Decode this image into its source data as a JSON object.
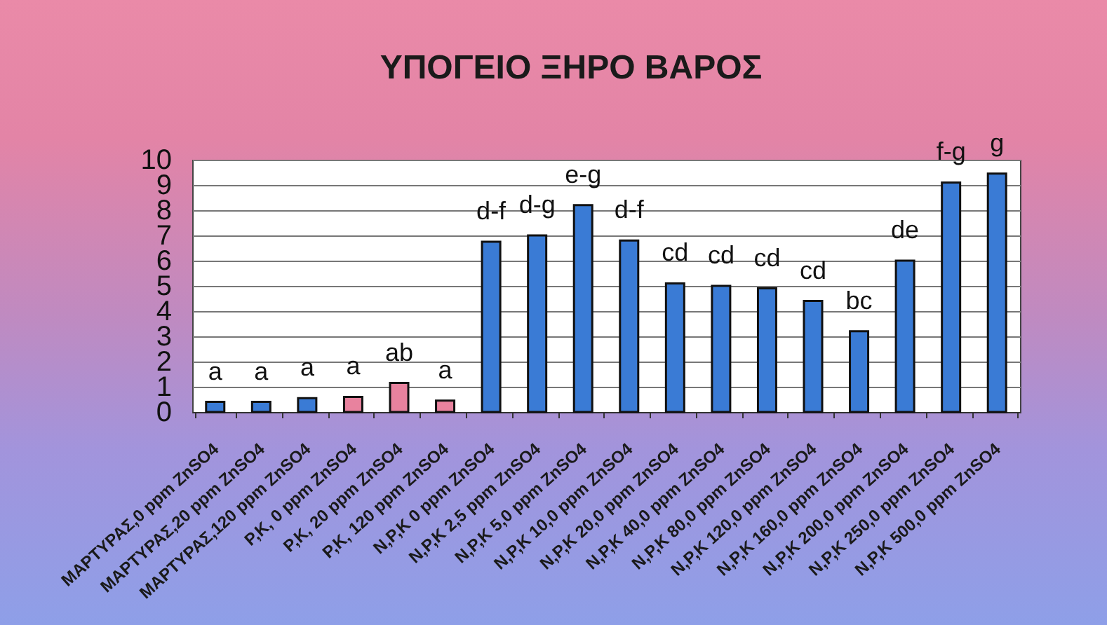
{
  "chart_data": {
    "type": "bar",
    "title": "ΥΠΟΓΕΙΟ ΞΗΡΟ ΒΑΡΟΣ",
    "categories": [
      "ΜΑΡΤΥΡΑΣ,0 ppm ZnSO4",
      "ΜΑΡΤΥΡΑΣ,20 ppm ZnSO4",
      "ΜΑΡΤΥΡΑΣ,120 ppm ZnSO4",
      "P,K, 0 ppm ZnSO4",
      "P,K, 20 ppm ZnSO4",
      "P,K, 120 ppm ZnSO4",
      "N,P,K 0 ppm ZnSO4",
      "N,P,K 2,5 ppm ZnSO4",
      "N,P,K 5,0 ppm ZnSO4",
      "N,P,K 10,0 ppm ZnSO4",
      "N,P,K 20,0 ppm ZnSO4",
      "N,P,K 40,0 ppm ZnSO4",
      "N,P,K 80,0 ppm ZnSO4",
      "N,P,K 120,0 ppm ZnSO4",
      "N,P,K 160,0 ppm ZnSO4",
      "N,P,K 200,0 ppm ZnSO4",
      "N,P,K 250,0 ppm ZnSO4",
      "N,P,K 500,0 ppm ZnSO4"
    ],
    "values": [
      0.4,
      0.4,
      0.55,
      0.6,
      1.15,
      0.45,
      6.75,
      7.0,
      8.2,
      6.8,
      5.1,
      5.0,
      4.9,
      4.4,
      3.2,
      6.0,
      9.1,
      9.45
    ],
    "colors": [
      "#3a7bd5",
      "#3a7bd5",
      "#3a7bd5",
      "#e8829e",
      "#e8829e",
      "#e8829e",
      "#3a7bd5",
      "#3a7bd5",
      "#3a7bd5",
      "#3a7bd5",
      "#3a7bd5",
      "#3a7bd5",
      "#3a7bd5",
      "#3a7bd5",
      "#3a7bd5",
      "#3a7bd5",
      "#3a7bd5",
      "#3a7bd5"
    ],
    "ylim": [
      0,
      10
    ],
    "yticks": [
      0,
      1,
      2,
      3,
      4,
      5,
      6,
      7,
      8,
      9,
      10
    ],
    "grid": "y",
    "annotations": [
      {
        "text": "a",
        "x": "ΜΑΡΤΥΡΑΣ,0 ppm ZnSO4",
        "y": 0.4
      },
      {
        "text": "a",
        "x": "ΜΑΡΤΥΡΑΣ,20 ppm ZnSO4",
        "y": 0.4
      },
      {
        "text": "a",
        "x": "ΜΑΡΤΥΡΑΣ,120 ppm ZnSO4",
        "y": 0.55
      },
      {
        "text": "a",
        "x": "P,K, 0 ppm ZnSO4",
        "y": 0.6
      },
      {
        "text": "ab",
        "x": "P,K, 20 ppm ZnSO4",
        "y": 1.15
      },
      {
        "text": "a",
        "x": "P,K, 120 ppm ZnSO4",
        "y": 0.45
      },
      {
        "text": "d-f",
        "x": "N,P,K 0 ppm ZnSO4",
        "y": 6.75
      },
      {
        "text": "d-g",
        "x": "N,P,K 2,5 ppm ZnSO4",
        "y": 7.0
      },
      {
        "text": "e-g",
        "x": "N,P,K 5,0 ppm ZnSO4",
        "y": 8.2
      },
      {
        "text": "d-f",
        "x": "N,P,K 10,0 ppm ZnSO4",
        "y": 6.8
      },
      {
        "text": "cd",
        "x": "N,P,K 20,0 ppm ZnSO4",
        "y": 5.1
      },
      {
        "text": "cd",
        "x": "N,P,K 40,0 ppm ZnSO4",
        "y": 5.0
      },
      {
        "text": "cd",
        "x": "N,P,K 80,0 ppm ZnSO4",
        "y": 4.9
      },
      {
        "text": "cd",
        "x": "N,P,K 120,0 ppm ZnSO4",
        "y": 4.4
      },
      {
        "text": "bc",
        "x": "N,P,K 160,0 ppm ZnSO4",
        "y": 3.2
      },
      {
        "text": "de",
        "x": "N,P,K 200,0 ppm ZnSO4",
        "y": 6.0
      },
      {
        "text": "f-g",
        "x": "N,P,K 250,0 ppm ZnSO4",
        "y": 9.1
      },
      {
        "text": "g",
        "x": "N,P,K 500,0 ppm ZnSO4",
        "y": 9.45
      }
    ]
  }
}
